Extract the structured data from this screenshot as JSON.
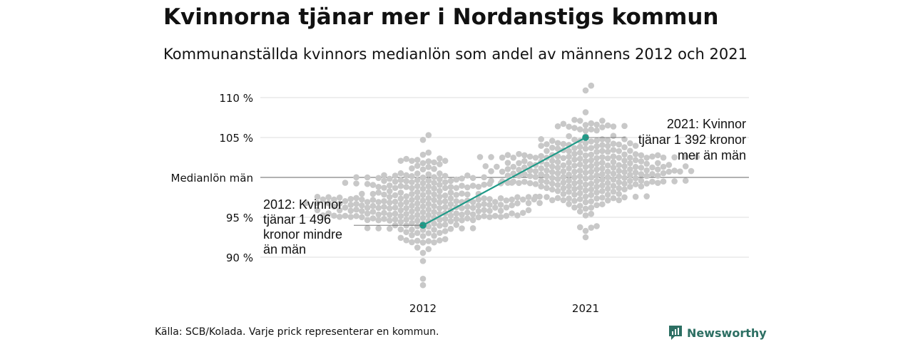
{
  "title": "Kvinnorna tjänar mer i Nordanstigs kommun",
  "subtitle": "Kommunanställda kvinnors medianlön som andel av männens 2012 och 2021",
  "source": "Källa: SCB/Kolada. Varje prick representerar en kommun.",
  "brand": {
    "name": "Newsworthy",
    "icon": "newsworthy-logo-icon",
    "color": "#2d6f63"
  },
  "colors": {
    "dots": "#c8c8c8",
    "highlight": "#1f9a88",
    "grid": "#dddddd",
    "reference": "#666666"
  },
  "chart_data": {
    "type": "scatter",
    "subtype": "beeswarm",
    "x_categories": [
      "2012",
      "2021"
    ],
    "y_ticks": [
      {
        "value": 110,
        "label": "110 %"
      },
      {
        "value": 105,
        "label": "105 %"
      },
      {
        "value": 100,
        "label": "Medianlön män"
      },
      {
        "value": 95,
        "label": "95 %"
      },
      {
        "value": 90,
        "label": "90 %"
      }
    ],
    "ylim": [
      86,
      112
    ],
    "grid": true,
    "reference_line": 100,
    "distributions": [
      {
        "category": "2012",
        "min": 86.5,
        "max": 105.3,
        "center": 96.8,
        "spread": 2.6
      },
      {
        "category": "2021",
        "min": 92.5,
        "max": 111.5,
        "center": 100.9,
        "spread": 2.6
      }
    ],
    "highlight": {
      "name": "Nordanstig",
      "points": [
        {
          "x": "2012",
          "y": 94.0
        },
        {
          "x": "2021",
          "y": 105.0
        }
      ]
    },
    "annotations": [
      {
        "year": "2012",
        "lines": [
          "2012: Kvinnor",
          "tjänar 1 496",
          "kronor mindre",
          "än män"
        ]
      },
      {
        "year": "2021",
        "lines": [
          "2021: Kvinnor",
          "tjänar 1 392 kronor",
          "mer än män"
        ]
      }
    ]
  }
}
